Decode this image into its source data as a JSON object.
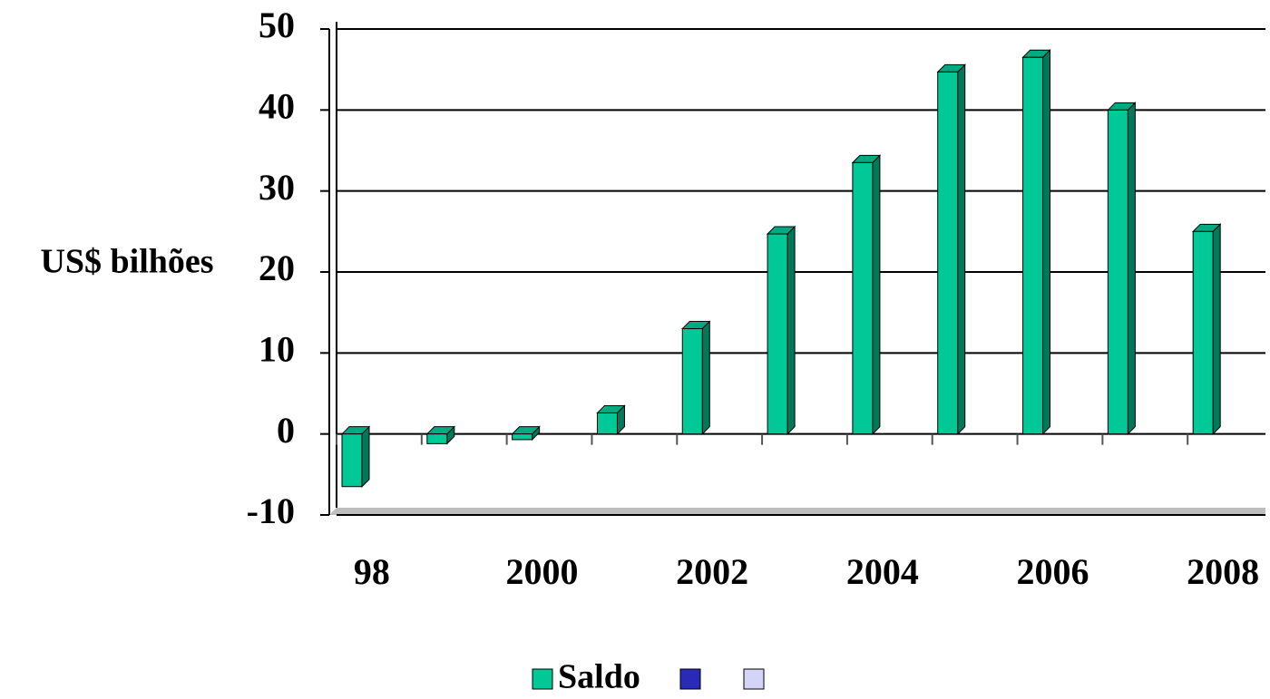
{
  "chart_data": {
    "type": "bar",
    "y_axis_label": "US$ bilhões",
    "categories": [
      "98",
      null,
      "2000",
      null,
      "2002",
      null,
      "2004",
      null,
      "2006",
      null,
      "2008"
    ],
    "series": [
      {
        "name": "Saldo",
        "color": "#00c896",
        "values": [
          -6.5,
          -1.2,
          -0.7,
          2.6,
          13,
          24.7,
          33.5,
          44.7,
          46.5,
          40,
          25
        ]
      },
      {
        "color": "#2a2ab8",
        "values": [
          null,
          null,
          null,
          null,
          null,
          null,
          null,
          null,
          null,
          null,
          null
        ]
      },
      {
        "color": "#d4d4f8",
        "values": [
          null,
          null,
          null,
          null,
          null,
          null,
          null,
          null,
          null,
          null,
          null
        ]
      }
    ],
    "ylim": [
      -10,
      50
    ],
    "yticks": [
      -10,
      0,
      10,
      20,
      30,
      40,
      50
    ],
    "grid": true,
    "legend": "bottom"
  }
}
